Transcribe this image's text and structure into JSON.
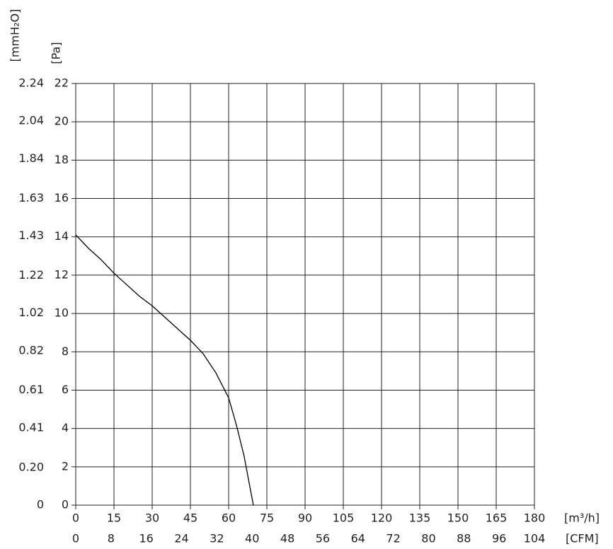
{
  "chart_data": {
    "type": "line",
    "x_label": "[m³/h]",
    "x2_label": "[CFM]",
    "y_label": "[Pa]",
    "y2_label": "[mmH₂O]",
    "x": [
      0,
      5,
      10,
      15,
      20,
      25,
      30,
      35,
      40,
      45,
      50,
      55,
      60,
      63,
      66,
      69.7
    ],
    "values": [
      14.1,
      13.4,
      12.8,
      12.1,
      11.5,
      10.9,
      10.4,
      9.8,
      9.2,
      8.6,
      7.9,
      6.9,
      5.6,
      4.2,
      2.6,
      0
    ],
    "color": "#000000",
    "xlim": [
      0,
      180
    ],
    "xticks": [
      0,
      15,
      30,
      45,
      60,
      75,
      90,
      105,
      120,
      135,
      150,
      165,
      180
    ],
    "x2lim": [
      0,
      104
    ],
    "x2ticks": [
      0,
      8,
      16,
      24,
      32,
      40,
      48,
      56,
      64,
      72,
      80,
      88,
      96,
      104
    ],
    "ylim": [
      0,
      22
    ],
    "yticks": [
      0,
      2,
      4,
      6,
      8,
      10,
      12,
      14,
      16,
      18,
      20,
      22
    ],
    "y2lim": [
      0,
      2.24
    ],
    "y2ticks": [
      0,
      {
        "value": 0.2,
        "label": "0.20"
      },
      0.41,
      0.61,
      0.82,
      1.02,
      1.22,
      1.43,
      1.63,
      1.84,
      2.04,
      2.24
    ],
    "grid": true
  }
}
